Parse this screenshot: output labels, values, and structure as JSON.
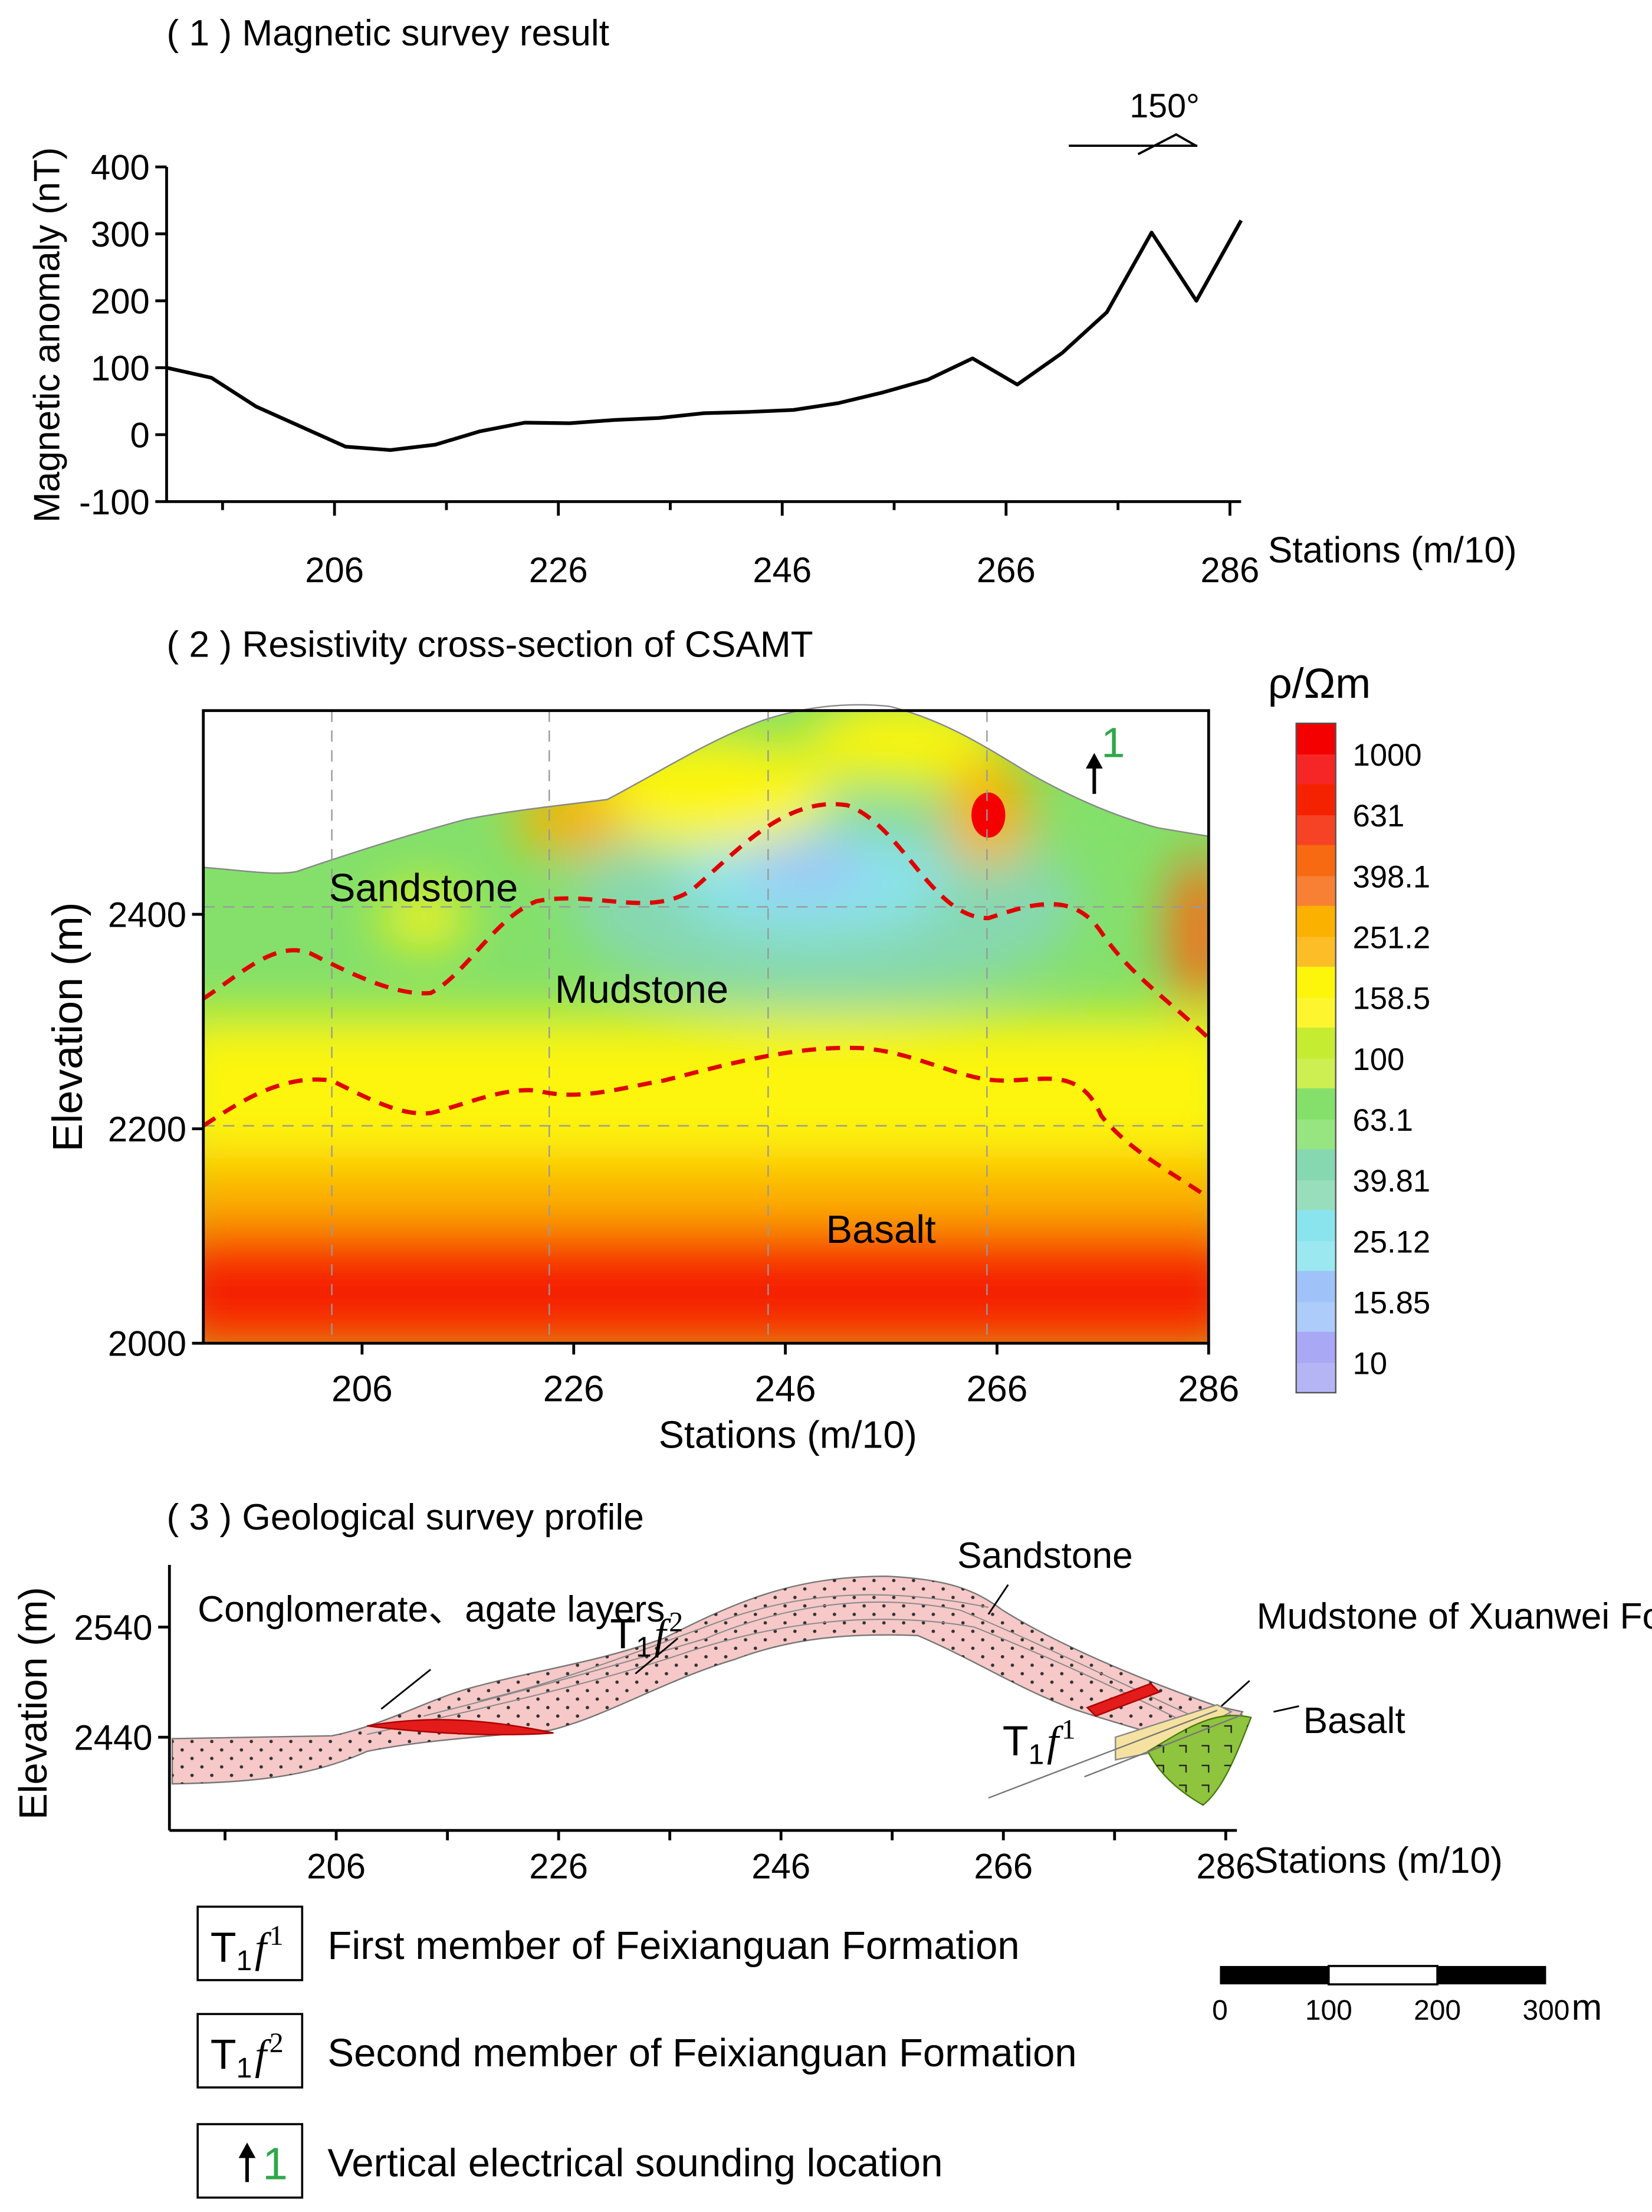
{
  "chart_data": [
    {
      "type": "line",
      "title": "( 1 ) Magnetic survey result",
      "xlabel": "Stations (m/10)",
      "ylabel": "Magnetic anomaly (nT)",
      "xlim": [
        191,
        287
      ],
      "ylim": [
        -100,
        400
      ],
      "xticks": [
        206,
        226,
        246,
        266,
        286
      ],
      "yticks": [
        -100,
        0,
        100,
        200,
        300,
        400
      ],
      "x": [
        191,
        195,
        199,
        203,
        207,
        211,
        215,
        219,
        223,
        227,
        231,
        235,
        239,
        243,
        247,
        251,
        255,
        259,
        263,
        267,
        271,
        275,
        279,
        283,
        287
      ],
      "y": [
        100,
        85,
        42,
        12,
        -18,
        -23,
        -15,
        5,
        18,
        17,
        22,
        25,
        32,
        34,
        37,
        47,
        63,
        82,
        114,
        75,
        122,
        183,
        302,
        200,
        320
      ],
      "annotation": "150°"
    },
    {
      "type": "heatmap",
      "title": "( 2 ) Resistivity cross-section of CSAMT",
      "xlabel": "Stations (m/10)",
      "ylabel": "Elevation (m)",
      "xlim": [
        191,
        286
      ],
      "ylim": [
        2000,
        2590
      ],
      "xticks": [
        206,
        226,
        246,
        266,
        286
      ],
      "yticks": [
        2000,
        2200,
        2400
      ],
      "colorbar_title": "ρ/Ωm",
      "colorbar_levels": [
        "1000",
        "631",
        "398.1",
        "251.2",
        "158.5",
        "100",
        "63.1",
        "39.81",
        "25.12",
        "15.85",
        "10"
      ],
      "colorbar_colors": [
        "#f40000",
        "#f52200",
        "#f76a12",
        "#fbb100",
        "#fdf50a",
        "#c6ec32",
        "#84e06a",
        "#86d8b0",
        "#8ae4ee",
        "#9fc3f8",
        "#a8a8f4"
      ],
      "units": [
        "Sandstone",
        "Mudstone",
        "Basalt"
      ],
      "ves_marker": "1"
    },
    {
      "type": "diagram",
      "title": "( 3 ) Geological survey profile",
      "xlabel": "Stations (m/10)",
      "ylabel": "Elevation (m)",
      "xticks": [
        206,
        226,
        246,
        266,
        286
      ],
      "yticks": [
        2440,
        2540
      ],
      "labels": {
        "conglomerate": "Conglomerate、agate layers",
        "sandstone": "Sandstone",
        "mudstone": "Mudstone of Xuanwei Formation",
        "basalt": "Basalt"
      },
      "formations": {
        "t1f1_base": "T",
        "t1f1_sub": "1",
        "t1f1_f": "f",
        "t1f1_sup": "1",
        "t1f2_base": "T",
        "t1f2_sub": "1",
        "t1f2_f": "f",
        "t1f2_sup": "2"
      },
      "legend": [
        {
          "symbol_sup": "1",
          "text": "First member of Feixianguan Formation"
        },
        {
          "symbol_sup": "2",
          "text": "Second member of Feixianguan Formation"
        },
        {
          "symbol_num": "1",
          "text": "Vertical electrical sounding location"
        }
      ],
      "scalebar": {
        "ticks": [
          "0",
          "100",
          "200",
          "300"
        ],
        "unit": "m"
      }
    }
  ]
}
